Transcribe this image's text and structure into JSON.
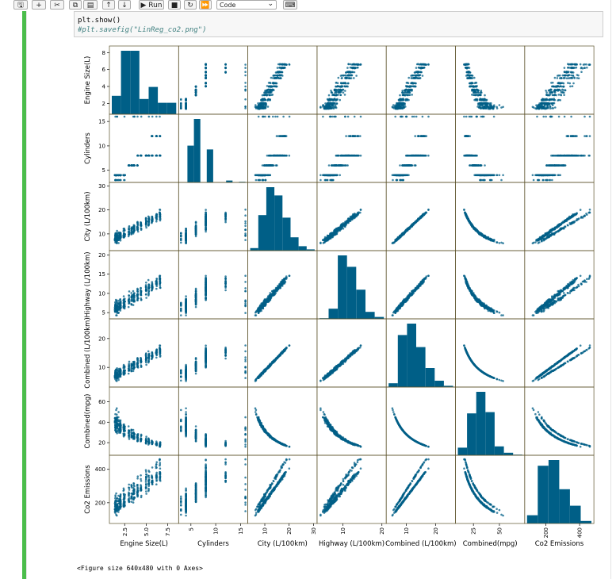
{
  "toolbar": {
    "buttons": [
      {
        "name": "save-button",
        "icon": "save-icon",
        "glyph": "🖫",
        "label": ""
      },
      {
        "name": "insert-cell-button",
        "icon": "plus-icon",
        "glyph": "+",
        "label": ""
      },
      {
        "name": "cut-button",
        "icon": "scissors-icon",
        "glyph": "✂",
        "label": ""
      },
      {
        "name": "copy-button",
        "icon": "copy-icon",
        "glyph": "⧉",
        "label": ""
      },
      {
        "name": "paste-button",
        "icon": "paste-icon",
        "glyph": "▤",
        "label": ""
      },
      {
        "name": "move-up-button",
        "icon": "arrow-up-icon",
        "glyph": "↑",
        "label": ""
      },
      {
        "name": "move-down-button",
        "icon": "arrow-down-icon",
        "glyph": "↓",
        "label": ""
      },
      {
        "name": "run-button",
        "icon": "play-icon",
        "glyph": "▶",
        "label": "Run"
      },
      {
        "name": "stop-button",
        "icon": "stop-icon",
        "glyph": "■",
        "label": ""
      },
      {
        "name": "restart-button",
        "icon": "restart-icon",
        "glyph": "↻",
        "label": ""
      },
      {
        "name": "fast-forward-button",
        "icon": "fast-forward-icon",
        "glyph": "⏩",
        "label": ""
      }
    ],
    "cell_type": "Code",
    "keyboard_icon_glyph": "⌨"
  },
  "code": {
    "line1": "plt.show()",
    "line2": "#plt.savefig(\"LinReg_co2.png\")"
  },
  "output": {
    "text": "<Figure size 640x480 with 0 Axes>"
  },
  "colors": {
    "accent_green": "#4bbd4b",
    "marker": "#005f87",
    "axis_frame": "#5a5028"
  },
  "chart_data": {
    "type": "scatter",
    "title": "",
    "variables": [
      "Engine Size(L)",
      "Cylinders",
      "City (L/100km)",
      "Highway (L/100km)",
      "Combined (L/100km)",
      "Combined(mpg)",
      "Co2 Emissions"
    ],
    "ranges": [
      [
        1,
        8.5
      ],
      [
        3,
        16
      ],
      [
        4,
        30.5
      ],
      [
        4,
        20.5
      ],
      [
        4,
        26
      ],
      [
        10,
        72
      ],
      [
        90,
        470
      ]
    ],
    "y_ticks": [
      [
        2,
        4,
        6,
        8
      ],
      [
        5,
        10,
        15
      ],
      [
        10,
        20,
        30
      ],
      [
        5,
        10,
        15,
        20
      ],
      [
        10,
        20
      ],
      [
        20,
        40,
        60
      ],
      [
        200,
        400
      ]
    ],
    "y_tick_labels": [
      [
        "2",
        "4",
        "6",
        "8"
      ],
      [
        "5",
        "10",
        "15"
      ],
      [
        "10",
        "20",
        "30"
      ],
      [
        "5",
        "10",
        "15",
        "20"
      ],
      [
        "10",
        "20"
      ],
      [
        "20",
        "40",
        "60"
      ],
      [
        "200",
        "400"
      ]
    ],
    "x_ticks": [
      [
        2.5,
        5.0,
        7.5
      ],
      [
        5,
        10,
        15
      ],
      [
        10,
        20,
        30
      ],
      [
        10,
        20
      ],
      [
        10,
        20
      ],
      [
        25,
        50
      ],
      [
        200,
        400
      ]
    ],
    "x_tick_labels": [
      [
        "2.5",
        "5.0",
        "7.5"
      ],
      [
        "5",
        "10",
        "15"
      ],
      [
        "10",
        "20",
        "30"
      ],
      [
        "10",
        "20"
      ],
      [
        "10",
        "20"
      ],
      [
        "25",
        "50"
      ],
      [
        "200",
        "400"
      ]
    ],
    "histograms": [
      [
        0.29,
        1.0,
        1.0,
        0.24,
        0.43,
        0.18,
        0.18
      ],
      [
        0.0,
        0.58,
        1.0,
        0.0,
        0.52,
        0.0,
        0.0,
        0.03,
        0.0,
        0.01
      ],
      [
        0.04,
        0.56,
        1.0,
        0.87,
        0.52,
        0.21,
        0.07,
        0.02
      ],
      [
        0.01,
        0.16,
        1.0,
        0.82,
        0.46,
        0.11,
        0.03
      ],
      [
        0.06,
        0.82,
        1.0,
        0.63,
        0.3,
        0.1,
        0.02
      ],
      [
        0.12,
        0.66,
        1.0,
        0.68,
        0.14,
        0.04,
        0.01
      ],
      [
        0.13,
        0.91,
        1.0,
        0.54,
        0.28,
        0.04
      ]
    ],
    "diagonal": "histogram",
    "grid": false,
    "legend": "none"
  }
}
